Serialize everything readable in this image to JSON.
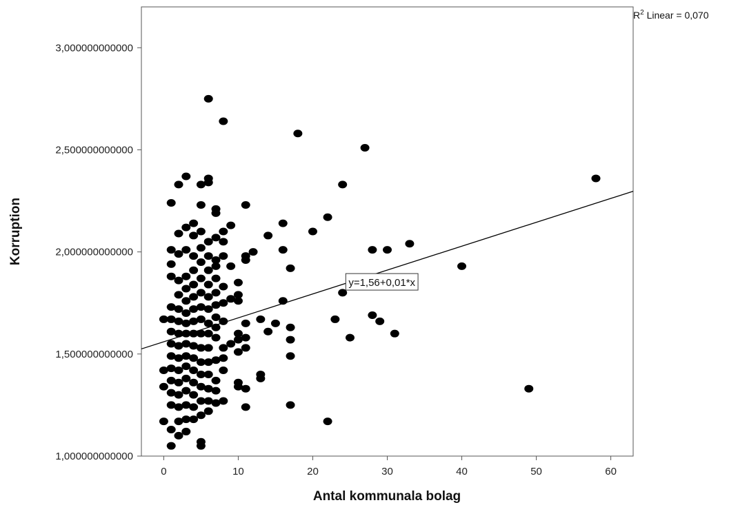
{
  "chart_data": {
    "type": "scatter",
    "title": "",
    "xlabel": "Antal kommunala bolag",
    "ylabel": "Korruption",
    "xlim": [
      -3,
      63
    ],
    "ylim": [
      1.0,
      3.2
    ],
    "xticks": [
      0,
      10,
      20,
      30,
      40,
      50,
      60
    ],
    "xtick_labels": [
      "0",
      "10",
      "20",
      "30",
      "40",
      "50",
      "60"
    ],
    "yticks": [
      1.0,
      1.5,
      2.0,
      2.5,
      3.0
    ],
    "ytick_labels": [
      "1,000000000000",
      "1,500000000000",
      "2,000000000000",
      "2,500000000000",
      "3,000000000000"
    ],
    "grid": false,
    "fit_line": {
      "intercept": 1.56,
      "slope": 0.0117,
      "label": "y=1,56+0,01*x",
      "label_at": [
        24.8,
        1.85
      ]
    },
    "r2_label": {
      "prefix": "R",
      "sup": "2",
      "suffix": " Linear = 0,070"
    },
    "marker_color": "#000000",
    "points": [
      [
        6,
        2.75
      ],
      [
        8,
        2.64
      ],
      [
        18,
        2.58
      ],
      [
        27,
        2.51
      ],
      [
        58,
        2.36
      ],
      [
        49,
        1.33
      ],
      [
        40,
        1.93
      ],
      [
        33,
        2.04
      ],
      [
        30,
        2.01
      ],
      [
        28,
        2.01
      ],
      [
        31,
        1.6
      ],
      [
        29,
        1.66
      ],
      [
        28,
        1.69
      ],
      [
        25,
        1.58
      ],
      [
        23,
        1.67
      ],
      [
        22,
        1.17
      ],
      [
        22,
        2.17
      ],
      [
        20,
        2.1
      ],
      [
        24,
        2.33
      ],
      [
        24,
        1.8
      ],
      [
        17,
        1.92
      ],
      [
        17,
        1.63
      ],
      [
        17,
        1.57
      ],
      [
        17,
        1.49
      ],
      [
        17,
        1.25
      ],
      [
        16,
        2.14
      ],
      [
        16,
        2.01
      ],
      [
        16,
        1.76
      ],
      [
        15,
        1.65
      ],
      [
        14,
        2.08
      ],
      [
        14,
        1.61
      ],
      [
        13,
        1.67
      ],
      [
        13,
        1.4
      ],
      [
        13,
        1.38
      ],
      [
        12,
        2.0
      ],
      [
        11,
        2.23
      ],
      [
        11,
        1.98
      ],
      [
        11,
        1.96
      ],
      [
        11,
        1.65
      ],
      [
        11,
        1.58
      ],
      [
        11,
        1.53
      ],
      [
        11,
        1.33
      ],
      [
        11,
        1.24
      ],
      [
        10,
        1.85
      ],
      [
        10,
        1.79
      ],
      [
        10,
        1.76
      ],
      [
        10,
        1.6
      ],
      [
        10,
        1.57
      ],
      [
        10,
        1.51
      ],
      [
        10,
        1.36
      ],
      [
        10,
        1.34
      ],
      [
        9,
        2.13
      ],
      [
        9,
        1.93
      ],
      [
        9,
        1.77
      ],
      [
        9,
        1.55
      ],
      [
        8,
        2.1
      ],
      [
        8,
        2.05
      ],
      [
        8,
        1.98
      ],
      [
        8,
        1.83
      ],
      [
        8,
        1.75
      ],
      [
        8,
        1.66
      ],
      [
        8,
        1.53
      ],
      [
        8,
        1.48
      ],
      [
        8,
        1.42
      ],
      [
        8,
        1.27
      ],
      [
        7,
        2.21
      ],
      [
        7,
        2.19
      ],
      [
        7,
        2.07
      ],
      [
        7,
        1.96
      ],
      [
        7,
        1.93
      ],
      [
        7,
        1.87
      ],
      [
        7,
        1.8
      ],
      [
        7,
        1.74
      ],
      [
        7,
        1.68
      ],
      [
        7,
        1.63
      ],
      [
        7,
        1.58
      ],
      [
        7,
        1.47
      ],
      [
        7,
        1.37
      ],
      [
        7,
        1.32
      ],
      [
        7,
        1.26
      ],
      [
        6,
        2.36
      ],
      [
        6,
        2.34
      ],
      [
        6,
        2.05
      ],
      [
        6,
        1.98
      ],
      [
        6,
        1.91
      ],
      [
        6,
        1.84
      ],
      [
        6,
        1.78
      ],
      [
        6,
        1.72
      ],
      [
        6,
        1.65
      ],
      [
        6,
        1.6
      ],
      [
        6,
        1.53
      ],
      [
        6,
        1.46
      ],
      [
        6,
        1.4
      ],
      [
        6,
        1.33
      ],
      [
        6,
        1.27
      ],
      [
        6,
        1.22
      ],
      [
        5,
        2.33
      ],
      [
        5,
        2.23
      ],
      [
        5,
        2.1
      ],
      [
        5,
        2.02
      ],
      [
        5,
        1.95
      ],
      [
        5,
        1.87
      ],
      [
        5,
        1.8
      ],
      [
        5,
        1.73
      ],
      [
        5,
        1.67
      ],
      [
        5,
        1.6
      ],
      [
        5,
        1.53
      ],
      [
        5,
        1.46
      ],
      [
        5,
        1.4
      ],
      [
        5,
        1.34
      ],
      [
        5,
        1.27
      ],
      [
        5,
        1.2
      ],
      [
        5,
        1.07
      ],
      [
        5,
        1.05
      ],
      [
        4,
        2.14
      ],
      [
        4,
        2.08
      ],
      [
        4,
        1.98
      ],
      [
        4,
        1.91
      ],
      [
        4,
        1.84
      ],
      [
        4,
        1.78
      ],
      [
        4,
        1.72
      ],
      [
        4,
        1.66
      ],
      [
        4,
        1.6
      ],
      [
        4,
        1.54
      ],
      [
        4,
        1.48
      ],
      [
        4,
        1.42
      ],
      [
        4,
        1.36
      ],
      [
        4,
        1.3
      ],
      [
        4,
        1.24
      ],
      [
        4,
        1.18
      ],
      [
        3,
        2.37
      ],
      [
        3,
        2.12
      ],
      [
        3,
        2.01
      ],
      [
        3,
        1.88
      ],
      [
        3,
        1.82
      ],
      [
        3,
        1.76
      ],
      [
        3,
        1.7
      ],
      [
        3,
        1.65
      ],
      [
        3,
        1.6
      ],
      [
        3,
        1.55
      ],
      [
        3,
        1.49
      ],
      [
        3,
        1.44
      ],
      [
        3,
        1.38
      ],
      [
        3,
        1.32
      ],
      [
        3,
        1.25
      ],
      [
        3,
        1.18
      ],
      [
        3,
        1.12
      ],
      [
        2,
        2.33
      ],
      [
        2,
        2.09
      ],
      [
        2,
        1.99
      ],
      [
        2,
        1.86
      ],
      [
        2,
        1.79
      ],
      [
        2,
        1.72
      ],
      [
        2,
        1.66
      ],
      [
        2,
        1.6
      ],
      [
        2,
        1.54
      ],
      [
        2,
        1.48
      ],
      [
        2,
        1.42
      ],
      [
        2,
        1.36
      ],
      [
        2,
        1.3
      ],
      [
        2,
        1.24
      ],
      [
        2,
        1.17
      ],
      [
        2,
        1.1
      ],
      [
        1,
        2.24
      ],
      [
        1,
        2.01
      ],
      [
        1,
        1.94
      ],
      [
        1,
        1.88
      ],
      [
        1,
        1.73
      ],
      [
        1,
        1.67
      ],
      [
        1,
        1.61
      ],
      [
        1,
        1.55
      ],
      [
        1,
        1.49
      ],
      [
        1,
        1.43
      ],
      [
        1,
        1.37
      ],
      [
        1,
        1.31
      ],
      [
        1,
        1.25
      ],
      [
        1,
        1.13
      ],
      [
        1,
        1.05
      ],
      [
        0,
        1.67
      ],
      [
        0,
        1.42
      ],
      [
        0,
        1.34
      ],
      [
        0,
        1.17
      ]
    ]
  }
}
